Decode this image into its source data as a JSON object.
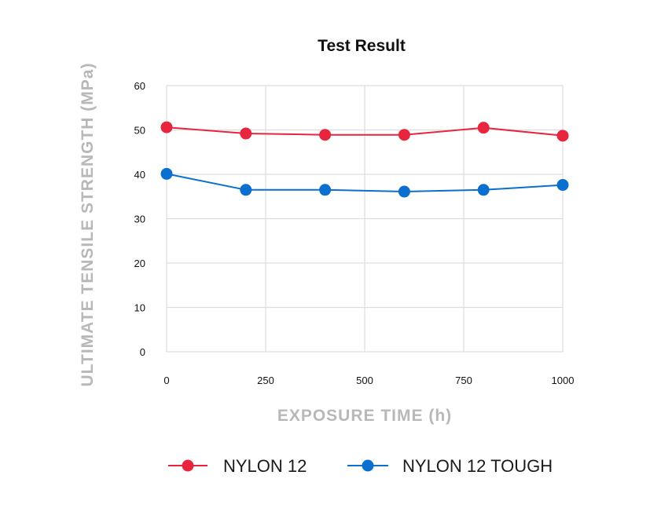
{
  "chart_data": {
    "type": "line",
    "title": "Test Result",
    "xlabel": "EXPOSURE TIME (h)",
    "ylabel": "ULTIMATE TENSILE STRENGTH (MPa)",
    "xlim": [
      0,
      1000
    ],
    "ylim": [
      0,
      60
    ],
    "x_ticks": [
      "0",
      "250",
      "500",
      "750",
      "1000"
    ],
    "y_ticks": [
      "0",
      "10",
      "20",
      "30",
      "40",
      "50",
      "60"
    ],
    "grid": true,
    "legend_position": "bottom",
    "series": [
      {
        "name": "NYLON 12",
        "color": "#e8253f",
        "x": [
          0,
          200,
          400,
          600,
          800,
          1000
        ],
        "y": [
          50.6,
          49.2,
          48.9,
          48.9,
          50.5,
          48.7
        ]
      },
      {
        "name": "NYLON 12 TOUGH",
        "color": "#0b6fd0",
        "x": [
          0,
          200,
          400,
          600,
          800,
          1000
        ],
        "y": [
          40.1,
          36.5,
          36.5,
          36.1,
          36.5,
          37.6
        ]
      }
    ]
  }
}
